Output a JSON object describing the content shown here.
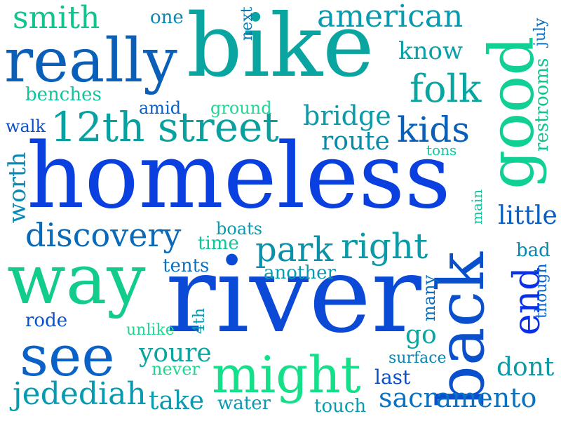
{
  "words": {
    "bike": {
      "text": "bike",
      "color": "#0aa5a0"
    },
    "homeless": {
      "text": "homeless",
      "color": "#0a3fe0"
    },
    "river": {
      "text": "river",
      "color": "#0a4ad6"
    },
    "really": {
      "text": "really",
      "color": "#0a5fb8"
    },
    "good": {
      "text": "good",
      "color": "#10d096"
    },
    "back": {
      "text": "back",
      "color": "#0a4fcc"
    },
    "way": {
      "text": "way",
      "color": "#12cc8c"
    },
    "see": {
      "text": "see",
      "color": "#0a62c8"
    },
    "might": {
      "text": "might",
      "color": "#15e08a"
    },
    "twelfth_street": {
      "text": "12th street",
      "color": "#0aa0a0"
    },
    "smith": {
      "text": "smith",
      "color": "#12c38f"
    },
    "american": {
      "text": "american",
      "color": "#0a9ab0"
    },
    "folk": {
      "text": "folk",
      "color": "#0aa5a0"
    },
    "kids": {
      "text": "kids",
      "color": "#0a5fb8"
    },
    "know": {
      "text": "know",
      "color": "#0aa0a8"
    },
    "one": {
      "text": "one",
      "color": "#0a86b2"
    },
    "next": {
      "text": "next",
      "color": "#0a7ab5"
    },
    "july": {
      "text": "july",
      "color": "#0a6fc0"
    },
    "restrooms": {
      "text": "restrooms",
      "color": "#12c38f"
    },
    "benches": {
      "text": "benches",
      "color": "#12c49a"
    },
    "amid": {
      "text": "amid",
      "color": "#0a5fc8"
    },
    "ground": {
      "text": "ground",
      "color": "#20d890"
    },
    "bridge": {
      "text": "bridge",
      "color": "#0a9aa8"
    },
    "walk": {
      "text": "walk",
      "color": "#0a4fcc"
    },
    "route": {
      "text": "route",
      "color": "#0a8aa8"
    },
    "tons": {
      "text": "tons",
      "color": "#10c8a0"
    },
    "worth": {
      "text": "worth",
      "color": "#0a8ab5"
    },
    "main": {
      "text": "main",
      "color": "#12c49a"
    },
    "little": {
      "text": "little",
      "color": "#0a5fc0"
    },
    "discovery": {
      "text": "discovery",
      "color": "#0a6ab8"
    },
    "boats": {
      "text": "boats",
      "color": "#0a9ab0"
    },
    "time": {
      "text": "time",
      "color": "#12c49a"
    },
    "park": {
      "text": "park",
      "color": "#0a90a8"
    },
    "right": {
      "text": "right",
      "color": "#0a9aa8"
    },
    "bad": {
      "text": "bad",
      "color": "#0a86b2"
    },
    "tents": {
      "text": "tents",
      "color": "#0a72c0"
    },
    "another": {
      "text": "another",
      "color": "#0a9ab0"
    },
    "many": {
      "text": "many",
      "color": "#0a6fc0"
    },
    "end": {
      "text": "end",
      "color": "#0a2fe8"
    },
    "though": {
      "text": "though",
      "color": "#0a62c8"
    },
    "rode": {
      "text": "rode",
      "color": "#0a4fcc"
    },
    "unlike": {
      "text": "unlike",
      "color": "#20d890"
    },
    "fourth": {
      "text": "4th",
      "color": "#0a9ab0"
    },
    "go": {
      "text": "go",
      "color": "#0aa5a0"
    },
    "youre": {
      "text": "youre",
      "color": "#0aa5a0"
    },
    "surface": {
      "text": "surface",
      "color": "#0a86b2"
    },
    "never": {
      "text": "never",
      "color": "#20d890"
    },
    "dont": {
      "text": "dont",
      "color": "#0a9aa8"
    },
    "last": {
      "text": "last",
      "color": "#0a4fcc"
    },
    "jedediah": {
      "text": "jedediah",
      "color": "#0a9ab0"
    },
    "take": {
      "text": "take",
      "color": "#0a9ab0"
    },
    "water": {
      "text": "water",
      "color": "#0a9ab0"
    },
    "touch": {
      "text": "touch",
      "color": "#0a9ab0"
    },
    "sacramento": {
      "text": "sacramento",
      "color": "#0a72c0"
    }
  }
}
